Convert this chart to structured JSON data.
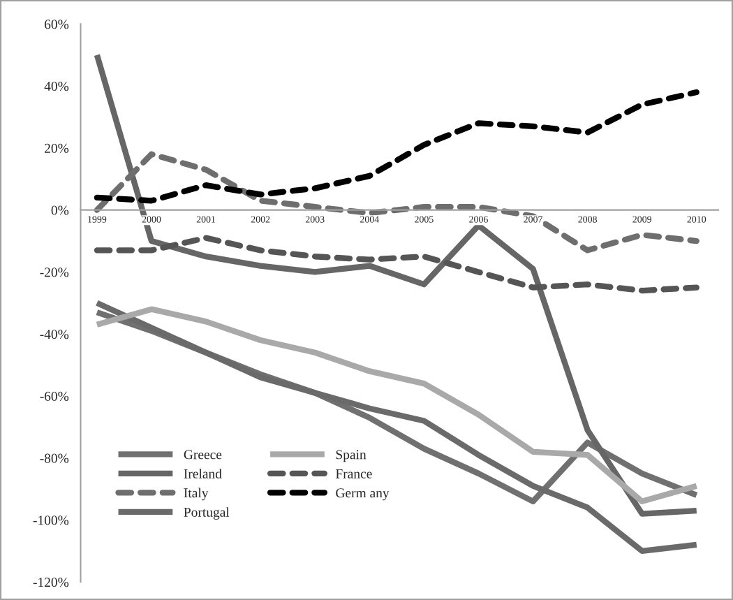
{
  "chart_data": {
    "type": "line",
    "categories": [
      "1999",
      "2000",
      "2001",
      "2002",
      "2003",
      "2004",
      "2005",
      "2006",
      "2007",
      "2008",
      "2009",
      "2010"
    ],
    "series": [
      {
        "name": "Greece",
        "color": "#707070",
        "line_style": "solid",
        "values": [
          -33,
          -39,
          -46,
          -53,
          -59,
          -67,
          -77,
          -85,
          -94,
          -75,
          -85,
          -92
        ]
      },
      {
        "name": "Ireland",
        "color": "#666666",
        "line_style": "solid",
        "values": [
          50,
          -10,
          -15,
          -18,
          -20,
          -18,
          -24,
          -5,
          -19,
          -71,
          -98,
          -97
        ]
      },
      {
        "name": "Italy",
        "color": "#6e6e6e",
        "line_style": "dashed",
        "values": [
          0,
          18,
          13,
          3,
          1,
          -1,
          1,
          1,
          -2,
          -13,
          -8,
          -10
        ]
      },
      {
        "name": "Portugal",
        "color": "#6a6a6a",
        "line_style": "solid",
        "values": [
          -30,
          -38,
          -46,
          -54,
          -59,
          -64,
          -68,
          -79,
          -89,
          -96,
          -110,
          -108
        ]
      },
      {
        "name": "Spain",
        "color": "#a9a9a9",
        "line_style": "solid",
        "values": [
          -37,
          -32,
          -36,
          -42,
          -46,
          -52,
          -56,
          -66,
          -78,
          -79,
          -94,
          -89
        ]
      },
      {
        "name": "France",
        "color": "#555555",
        "line_style": "dashed",
        "values": [
          -13,
          -13,
          -9,
          -13,
          -15,
          -16,
          -15,
          -20,
          -25,
          -24,
          -26,
          -25
        ]
      },
      {
        "name": "Germ any",
        "color": "#000000",
        "line_style": "dashed",
        "values": [
          4,
          3,
          8,
          5,
          7,
          11,
          21,
          28,
          27,
          25,
          34,
          38
        ]
      }
    ],
    "ylim": [
      -120,
      60
    ],
    "yticks": [
      {
        "value": -120,
        "label": "-120%"
      },
      {
        "value": -100,
        "label": "-100%"
      },
      {
        "value": -80,
        "label": "-80%"
      },
      {
        "value": -60,
        "label": "-60%"
      },
      {
        "value": -40,
        "label": "-40%"
      },
      {
        "value": -20,
        "label": "-20%"
      },
      {
        "value": 0,
        "label": "0%"
      },
      {
        "value": 20,
        "label": "20%"
      },
      {
        "value": 40,
        "label": "40%"
      },
      {
        "value": 60,
        "label": "60%"
      }
    ],
    "grid": false,
    "legend": "bottom left",
    "marker": "none"
  }
}
